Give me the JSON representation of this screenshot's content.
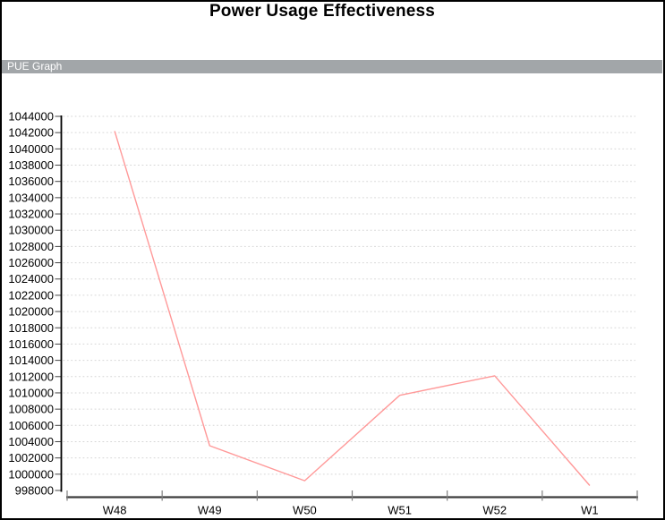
{
  "page": {
    "title": "Power Usage Effectiveness",
    "section_label": "PUE Graph"
  },
  "colors": {
    "line": "#ff9999",
    "gridline": "#d6d6d6",
    "y_axis": "#000000",
    "x_axis": "#3d3d3d",
    "axis_tick": "#808080",
    "label_text": "#000000",
    "section_bar_bg": "#a2a6a9",
    "section_bar_text": "#ffffff"
  },
  "chart_data": {
    "type": "line",
    "title": "Power Usage Effectiveness",
    "subtitle": "PUE Graph",
    "categories": [
      "W48",
      "W49",
      "W50",
      "W51",
      "W52",
      "W1"
    ],
    "series": [
      {
        "name": "PUE",
        "values": [
          1042200,
          1003500,
          999200,
          1009700,
          1012100,
          998600
        ]
      }
    ],
    "xlabel": "",
    "ylabel": "",
    "ylim": [
      998000,
      1044000
    ],
    "ytick_step": 2000,
    "ytick_labels": [
      "998000",
      "1000000",
      "1002000",
      "1004000",
      "1006000",
      "1008000",
      "1010000",
      "1012000",
      "1014000",
      "1016000",
      "1018000",
      "1020000",
      "1022000",
      "1024000",
      "1026000",
      "1028000",
      "1030000",
      "1032000",
      "1034000",
      "1036000",
      "1038000",
      "1040000",
      "1042000",
      "1044000"
    ],
    "grid": "horizontal-dotted",
    "legend": "none",
    "markers": "none",
    "line_color": "#ff9999"
  }
}
